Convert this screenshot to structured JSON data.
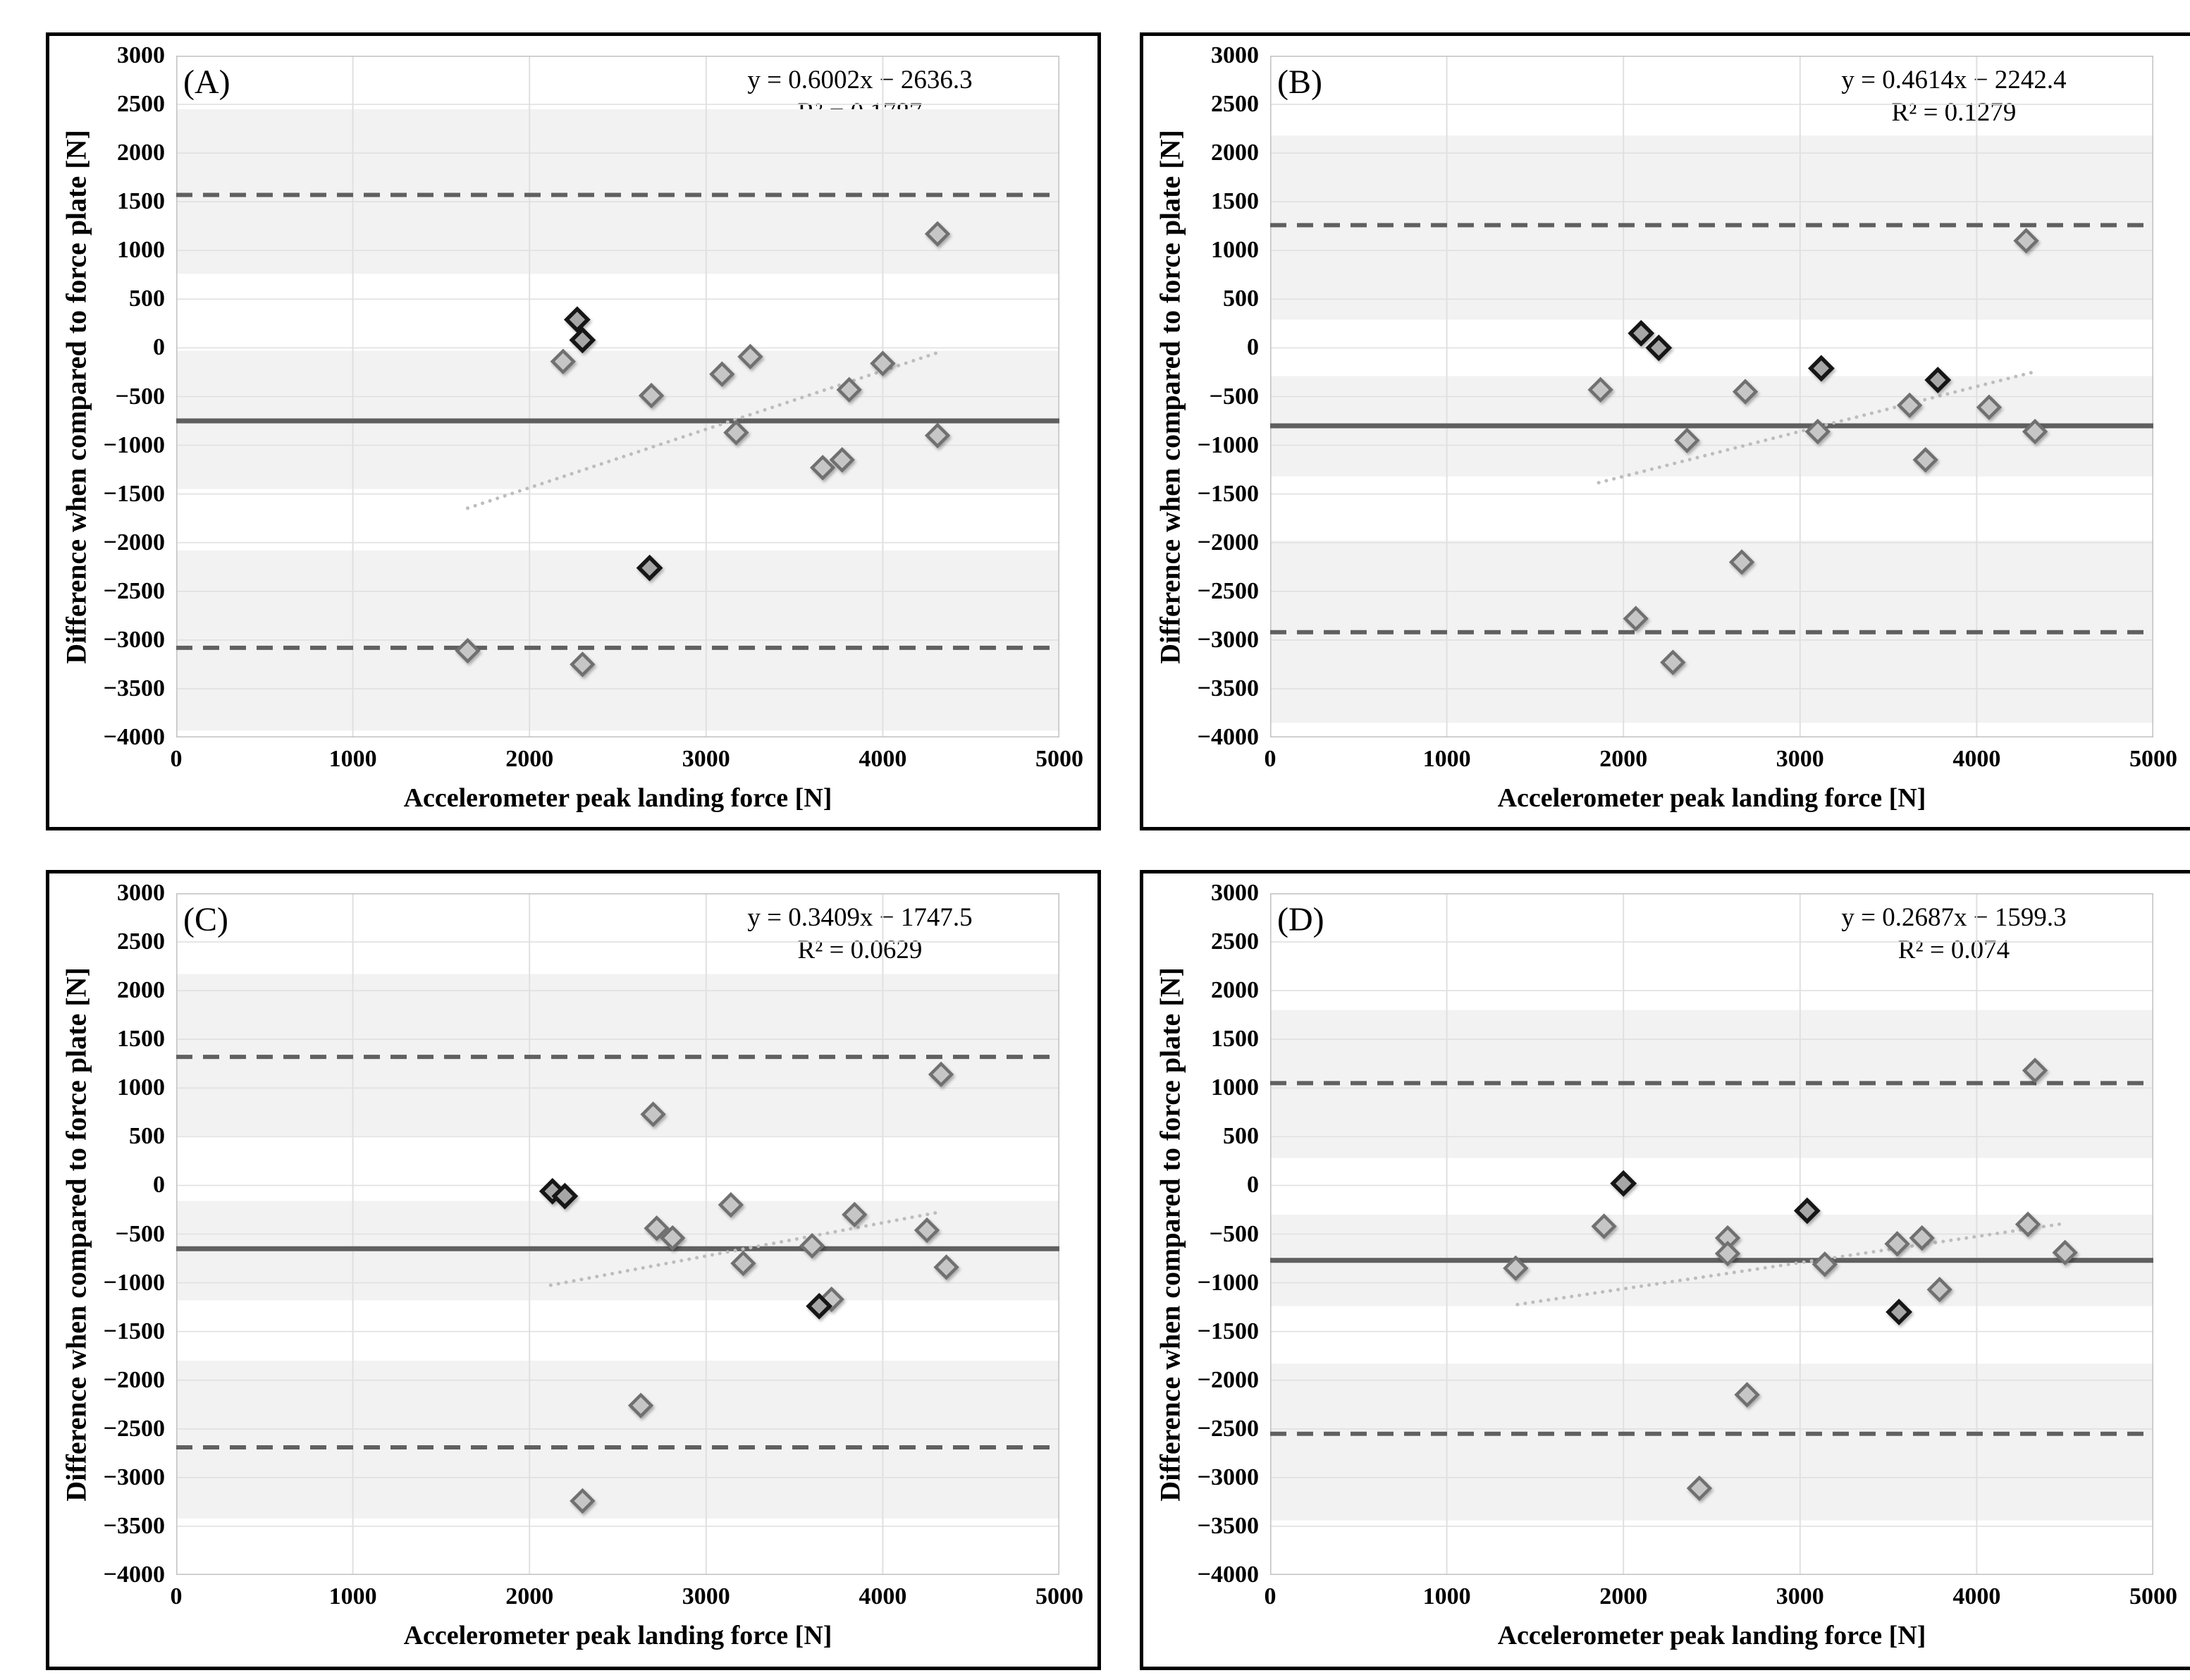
{
  "axes": {
    "x_title": "Accelerometer peak landing force [N]",
    "y_title": "Difference when compared to force plate [N]",
    "xlim": [
      0,
      5000
    ],
    "ylim": [
      -4000,
      3000
    ],
    "x_ticks": [
      0,
      1000,
      2000,
      3000,
      4000,
      5000
    ],
    "y_ticks": [
      3000,
      2500,
      2000,
      1500,
      1000,
      500,
      0,
      -500,
      -1000,
      -1500,
      -2000,
      -2500,
      -3000,
      -3500,
      -4000
    ],
    "grid": "on"
  },
  "palette": {
    "band_fill": "#f2f2f2",
    "gridline": "#e0e0e0",
    "plot_border": "#c4c4c4",
    "mean_line": "#5f5f5f",
    "loa_line": "#606060",
    "trend_line": "#bdbdbd",
    "marker_light_fill": "#c6c6c6",
    "marker_light_stroke": "#707070",
    "marker_dark_fill": "#a6a6a6",
    "marker_dark_stroke": "#141414",
    "panel_border": "#000000"
  },
  "chart_data": [
    {
      "type": "scatter",
      "panel_label": "(A)",
      "equation": "y = 0.6002x − 2636.3",
      "r_squared": "R² = 0.1787",
      "regression": {
        "slope": 0.6002,
        "intercept": -2636.3,
        "x_start": 1650,
        "x_end": 4330
      },
      "mean_bias": -750,
      "upper_loa": 1570,
      "lower_loa": -3080,
      "shaded_bands": [
        [
          2450,
          760
        ],
        [
          -30,
          -1450
        ],
        [
          -2080,
          -3930
        ]
      ],
      "points_light": [
        [
          2190,
          -140
        ],
        [
          2690,
          -490
        ],
        [
          3090,
          -270
        ],
        [
          3250,
          -90
        ],
        [
          3170,
          -870
        ],
        [
          4000,
          -160
        ],
        [
          3810,
          -430
        ],
        [
          3660,
          -1230
        ],
        [
          3770,
          -1150
        ],
        [
          4310,
          1170
        ],
        [
          4310,
          -900
        ],
        [
          1650,
          -3110
        ],
        [
          2300,
          -3250
        ]
      ],
      "points_dark": [
        [
          2270,
          290
        ],
        [
          2300,
          80
        ],
        [
          2680,
          -2260
        ]
      ]
    },
    {
      "type": "scatter",
      "panel_label": "(B)",
      "equation": "y = 0.4614x − 2242.4",
      "r_squared": "R² = 0.1279",
      "regression": {
        "slope": 0.4614,
        "intercept": -2242.4,
        "x_start": 1860,
        "x_end": 4330
      },
      "mean_bias": -800,
      "upper_loa": 1260,
      "lower_loa": -2920,
      "shaded_bands": [
        [
          2180,
          290
        ],
        [
          -290,
          -1320
        ],
        [
          -1980,
          -3850
        ]
      ],
      "points_light": [
        [
          1870,
          -430
        ],
        [
          2690,
          -450
        ],
        [
          3620,
          -590
        ],
        [
          4070,
          -610
        ],
        [
          2360,
          -950
        ],
        [
          3100,
          -860
        ],
        [
          4330,
          -860
        ],
        [
          3710,
          -1150
        ],
        [
          4280,
          1100
        ],
        [
          2670,
          -2200
        ],
        [
          2070,
          -2780
        ],
        [
          2280,
          -3230
        ]
      ],
      "points_dark": [
        [
          2100,
          150
        ],
        [
          2200,
          0
        ],
        [
          3120,
          -210
        ],
        [
          3780,
          -330
        ]
      ]
    },
    {
      "type": "scatter",
      "panel_label": "(C)",
      "equation": "y = 0.3409x − 1747.5",
      "r_squared": "R² = 0.0629",
      "regression": {
        "slope": 0.3409,
        "intercept": -1747.5,
        "x_start": 2120,
        "x_end": 4340
      },
      "mean_bias": -650,
      "upper_loa": 1320,
      "lower_loa": -2690,
      "shaded_bands": [
        [
          2170,
          510
        ],
        [
          -160,
          -1180
        ],
        [
          -1800,
          -3420
        ]
      ],
      "points_light": [
        [
          2700,
          730
        ],
        [
          3140,
          -200
        ],
        [
          2720,
          -440
        ],
        [
          2810,
          -540
        ],
        [
          3840,
          -300
        ],
        [
          3600,
          -620
        ],
        [
          3210,
          -800
        ],
        [
          4250,
          -460
        ],
        [
          4360,
          -840
        ],
        [
          3710,
          -1170
        ],
        [
          4330,
          1140
        ],
        [
          2630,
          -2260
        ],
        [
          2300,
          -3240
        ]
      ],
      "points_dark": [
        [
          2130,
          -60
        ],
        [
          2200,
          -110
        ],
        [
          3640,
          -1240
        ]
      ]
    },
    {
      "type": "scatter",
      "panel_label": "(D)",
      "equation": "y = 0.2687x − 1599.3",
      "r_squared": "R² = 0.074",
      "regression": {
        "slope": 0.2687,
        "intercept": -1599.3,
        "x_start": 1400,
        "x_end": 4500
      },
      "mean_bias": -770,
      "upper_loa": 1050,
      "lower_loa": -2550,
      "shaded_bands": [
        [
          1800,
          280
        ],
        [
          -300,
          -1240
        ],
        [
          -1830,
          -3440
        ]
      ],
      "points_light": [
        [
          1890,
          -420
        ],
        [
          2590,
          -540
        ],
        [
          2590,
          -700
        ],
        [
          1390,
          -850
        ],
        [
          3140,
          -810
        ],
        [
          3550,
          -600
        ],
        [
          3690,
          -540
        ],
        [
          4290,
          -400
        ],
        [
          4500,
          -690
        ],
        [
          3790,
          -1070
        ],
        [
          4330,
          1180
        ],
        [
          2700,
          -2150
        ],
        [
          2430,
          -3110
        ]
      ],
      "points_dark": [
        [
          2000,
          20
        ],
        [
          3040,
          -260
        ],
        [
          3560,
          -1300
        ]
      ]
    }
  ]
}
